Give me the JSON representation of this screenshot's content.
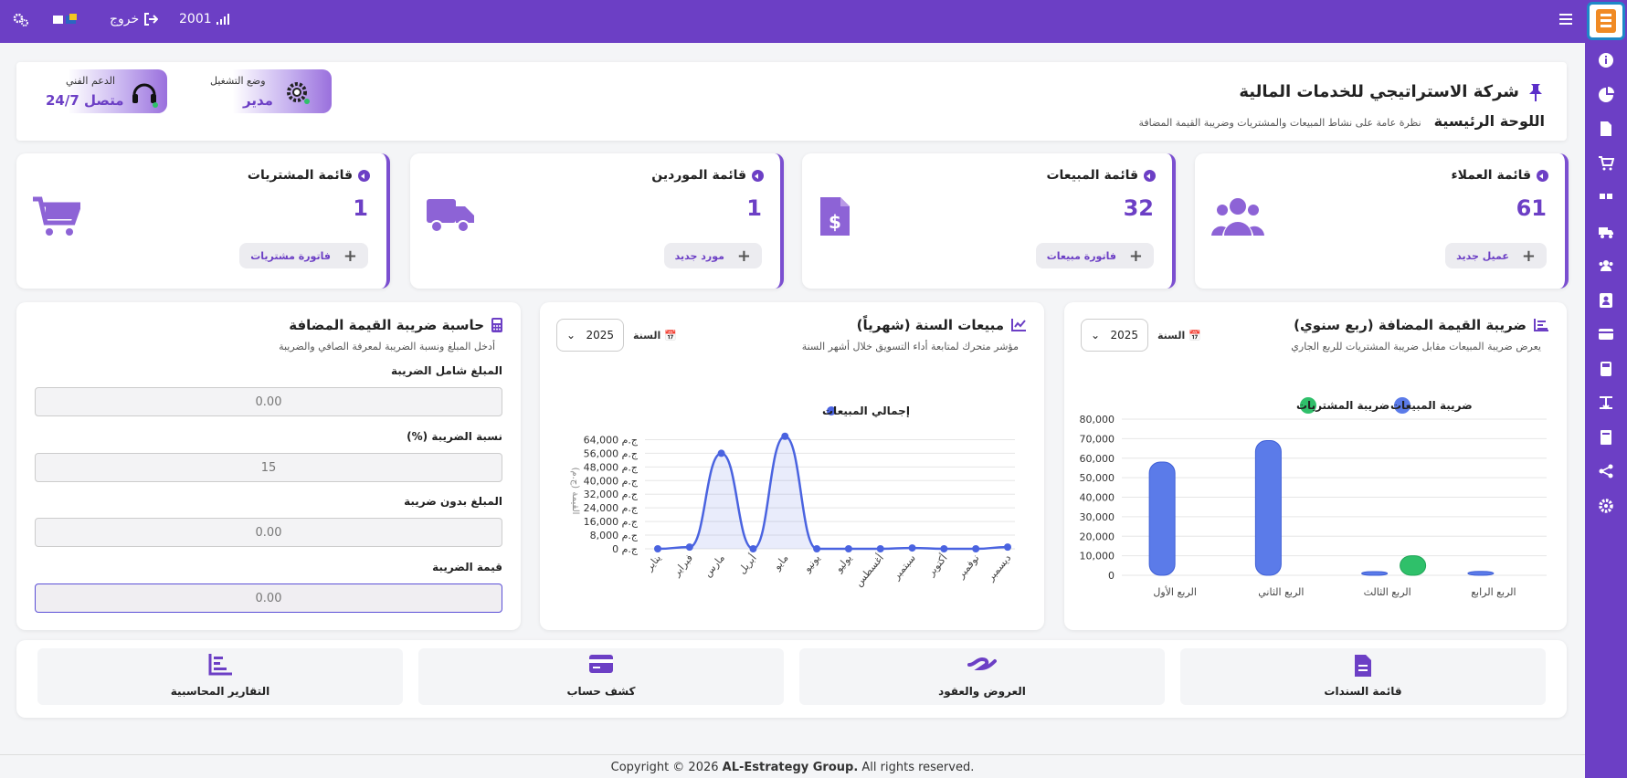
{
  "topbar": {
    "signal_value": "2001",
    "logout_label": "خروج",
    "settings_icon": "gears-icon",
    "menu_icon": "hamburger-icon"
  },
  "header": {
    "company": "شركة الاستراتيجي للخدمات المالية",
    "page_title": "اللوحة الرئيسية",
    "subtitle": "نظرة عامة على نشاط المبيعات والمشتريات وضريبة القيمة المضافة",
    "mode_label": "وضع التشغيل",
    "mode_value": "مدير",
    "support_label": "الدعم الفني",
    "support_value": "متصل 24/7"
  },
  "stats": [
    {
      "title": "قائمة العملاء",
      "value": "61",
      "button": "عميل جديد",
      "icon": "users-icon"
    },
    {
      "title": "قائمة المبيعات",
      "value": "32",
      "button": "فاتورة مبيعات",
      "icon": "invoice-dollar-icon"
    },
    {
      "title": "قائمة الموردين",
      "value": "1",
      "button": "مورد جديد",
      "icon": "truck-icon"
    },
    {
      "title": "قائمة المشتريات",
      "value": "1",
      "button": "فاتورة مشتريات",
      "icon": "cart-icon"
    }
  ],
  "vat_chart": {
    "title": "ضريبة القيمة المضافة (ربع سنوي)",
    "subtitle": "يعرض ضريبة المبيعات مقابل ضريبة المشتريات للربع الجاري",
    "year_label": "السنة",
    "year_value": "2025"
  },
  "sales_chart": {
    "title": "مبيعات السنة (شهرياً)",
    "subtitle": "مؤشر متحرك لمتابعة أداء التسويق خلال أشهر السنة",
    "year_label": "السنة",
    "year_value": "2025"
  },
  "calculator": {
    "title": "حاسبة ضريبة القيمة المضافة",
    "subtitle": "أدخل المبلغ ونسبة الضريبة لمعرفة الصافي والضريبة",
    "gross_label": "المبلغ شامل الضريبة",
    "gross_value": "0.00",
    "rate_label": "نسبة الضريبة (%)",
    "rate_value": "15",
    "net_label": "المبلغ بدون ضريبة",
    "net_value": "0.00",
    "tax_label": "قيمة الضريبة",
    "tax_value": "0.00"
  },
  "quick_links": [
    {
      "label": "قائمة السندات",
      "icon": "file-icon"
    },
    {
      "label": "العروض والعقود",
      "icon": "handshake-icon"
    },
    {
      "label": "كشف حساب",
      "icon": "credit-card-icon"
    },
    {
      "label": "التقارير المحاسبية",
      "icon": "report-chart-icon"
    }
  ],
  "footer": {
    "prefix": "Copyright © 2026",
    "brand": "AL-Estrategy Group.",
    "suffix": "All rights reserved."
  },
  "sidebar_icons": [
    "info-icon",
    "pie-chart-icon",
    "document-icon",
    "cart-icon",
    "quote-icon",
    "truck-icon",
    "users-icon",
    "contact-card-icon",
    "credit-card-icon",
    "calculator-icon",
    "transfer-icon",
    "book-icon",
    "share-icon",
    "cog-icon"
  ],
  "chart_data": [
    {
      "type": "bar",
      "categories": [
        "الربع الأول",
        "الربع الثاني",
        "الربع الثالث",
        "الربع الرابع"
      ],
      "series": [
        {
          "name": "ضريبة المبيعات",
          "values": [
            58000,
            69000,
            500,
            2000
          ],
          "color": "#5b7be9"
        },
        {
          "name": "ضريبة المشتريات",
          "values": [
            0,
            0,
            10000,
            0
          ],
          "color": "#2fc06a"
        }
      ],
      "ylim": [
        0,
        80000
      ],
      "yticks": [
        "80,000",
        "70,000",
        "60,000",
        "50,000",
        "40,000",
        "30,000",
        "20,000",
        "10,000",
        "0"
      ],
      "legend": "top"
    },
    {
      "type": "line",
      "categories": [
        "يناير",
        "فبراير",
        "مارس",
        "أبريل",
        "مايو",
        "يونيو",
        "يوليو",
        "أغسطس",
        "سبتمبر",
        "أكتوبر",
        "نوفمبر",
        "ديسمبر"
      ],
      "series": [
        {
          "name": "إجمالي المبيعات",
          "values": [
            0,
            1000,
            56000,
            0,
            66000,
            0,
            0,
            0,
            500,
            0,
            0,
            1000
          ],
          "color": "#4a63e0"
        }
      ],
      "ylim": [
        0,
        68000
      ],
      "yticks": [
        "0 ج.م",
        "8,000 ج.م",
        "16,000 ج.م",
        "24,000 ج.م",
        "32,000 ج.م",
        "40,000 ج.م",
        "48,000 ج.م",
        "56,000 ج.م",
        "64,000 ج.م"
      ],
      "ylabel": "القيمة (ج.م)",
      "legend": "top"
    }
  ]
}
